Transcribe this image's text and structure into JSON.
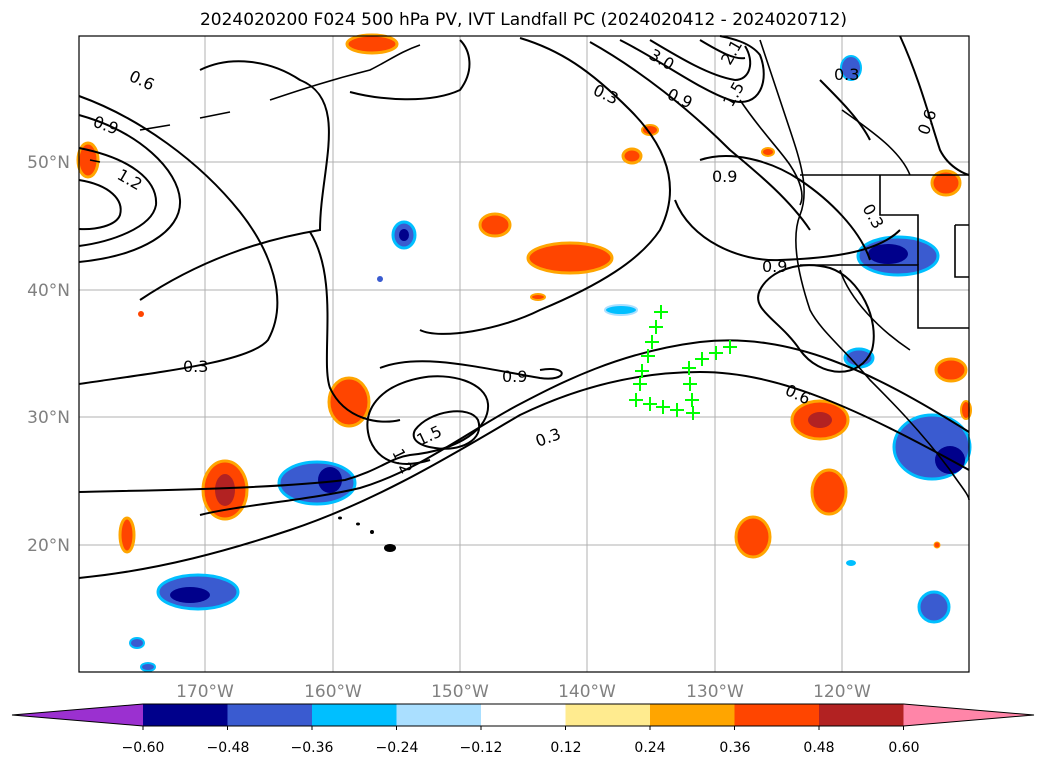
{
  "title": "2024020200 F024 500 hPa PV, IVT Landfall PC (2024020412 - 2024020712)",
  "axes": {
    "lat_labels": [
      "50°N",
      "40°N",
      "30°N",
      "20°N"
    ],
    "lon_labels": [
      "170°W",
      "160°W",
      "150°W",
      "140°W",
      "130°W",
      "120°W"
    ]
  },
  "contour_labels": [
    "0.6",
    "0.9",
    "1.2",
    "0.3",
    "0.9",
    "1.5",
    "1.2",
    "0.3",
    "0.6",
    "0.9",
    "0.3",
    "0.9",
    "0.3",
    "3.0",
    "1.5",
    "0.9",
    "0.6",
    "2.1",
    "0.3"
  ],
  "colorbar": {
    "tick_labels": [
      "−0.60",
      "−0.48",
      "−0.36",
      "−0.24",
      "−0.12",
      "0.12",
      "0.24",
      "0.36",
      "0.48",
      "0.60"
    ],
    "colors": [
      "#9b30d0",
      "#00008b",
      "#3a5bd0",
      "#00bfff",
      "#aadfff",
      "#ffffff",
      "#ffeb8f",
      "#ffa500",
      "#ff4500",
      "#b22222",
      "#ff85a8"
    ]
  },
  "markers": {
    "color": "#00ff00",
    "symbol": "+"
  }
}
